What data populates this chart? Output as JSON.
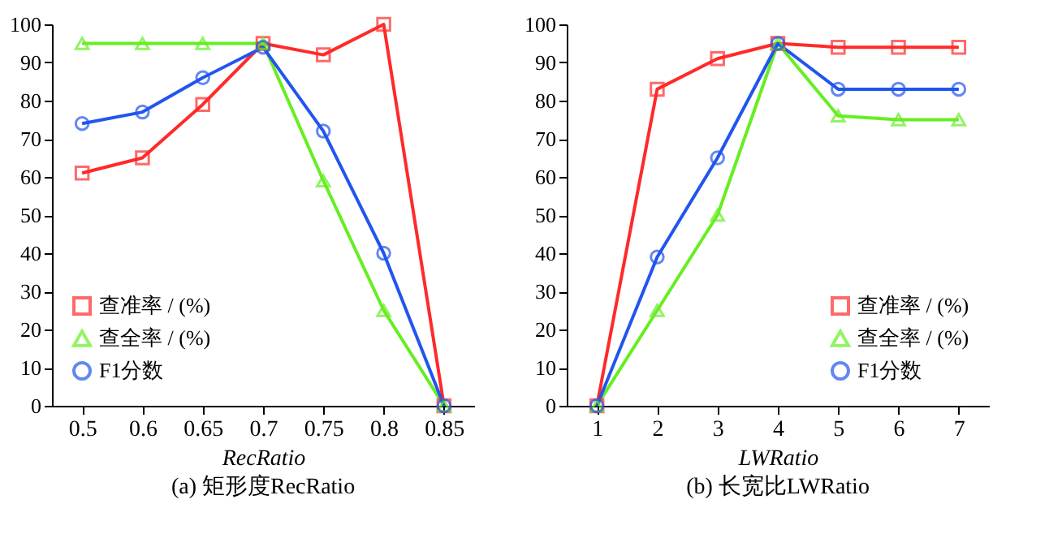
{
  "chart_data": [
    {
      "type": "line",
      "title": "(a) 矩形度RecRatio",
      "xlabel": "RecRatio",
      "categories": [
        "0.5",
        "0.6",
        "0.65",
        "0.7",
        "0.75",
        "0.8",
        "0.85"
      ],
      "ylim": [
        0,
        100
      ],
      "yticks": [
        0,
        10,
        20,
        30,
        40,
        50,
        60,
        70,
        80,
        90,
        100
      ],
      "grid": false,
      "legend": "bottom left",
      "series": [
        {
          "name": "查准率 / (%)",
          "color": "#ff2a2a",
          "marker": "square",
          "values": [
            61,
            65,
            79,
            95,
            92,
            100,
            0
          ]
        },
        {
          "name": "查全率 / (%)",
          "color": "#66ee22",
          "marker": "triangle",
          "values": [
            95,
            95,
            95,
            95,
            59,
            25,
            0
          ]
        },
        {
          "name": "F1分数",
          "color": "#2255ee",
          "marker": "circle",
          "values": [
            74,
            77,
            86,
            94,
            72,
            40,
            0
          ]
        }
      ]
    },
    {
      "type": "line",
      "title": "(b) 长宽比LWRatio",
      "xlabel": "LWRatio",
      "categories": [
        "1",
        "2",
        "3",
        "4",
        "5",
        "6",
        "7"
      ],
      "ylim": [
        0,
        100
      ],
      "yticks": [
        0,
        10,
        20,
        30,
        40,
        50,
        60,
        70,
        80,
        90,
        100
      ],
      "grid": false,
      "legend": "bottom right",
      "series": [
        {
          "name": "查准率 / (%)",
          "color": "#ff2a2a",
          "marker": "square",
          "values": [
            0,
            83,
            91,
            95,
            94,
            94,
            94
          ]
        },
        {
          "name": "查全率 / (%)",
          "color": "#66ee22",
          "marker": "triangle",
          "values": [
            0,
            25,
            50,
            95,
            76,
            75,
            75
          ]
        },
        {
          "name": "F1分数",
          "color": "#2255ee",
          "marker": "circle",
          "values": [
            0,
            39,
            65,
            95,
            83,
            83,
            83
          ]
        }
      ]
    }
  ]
}
